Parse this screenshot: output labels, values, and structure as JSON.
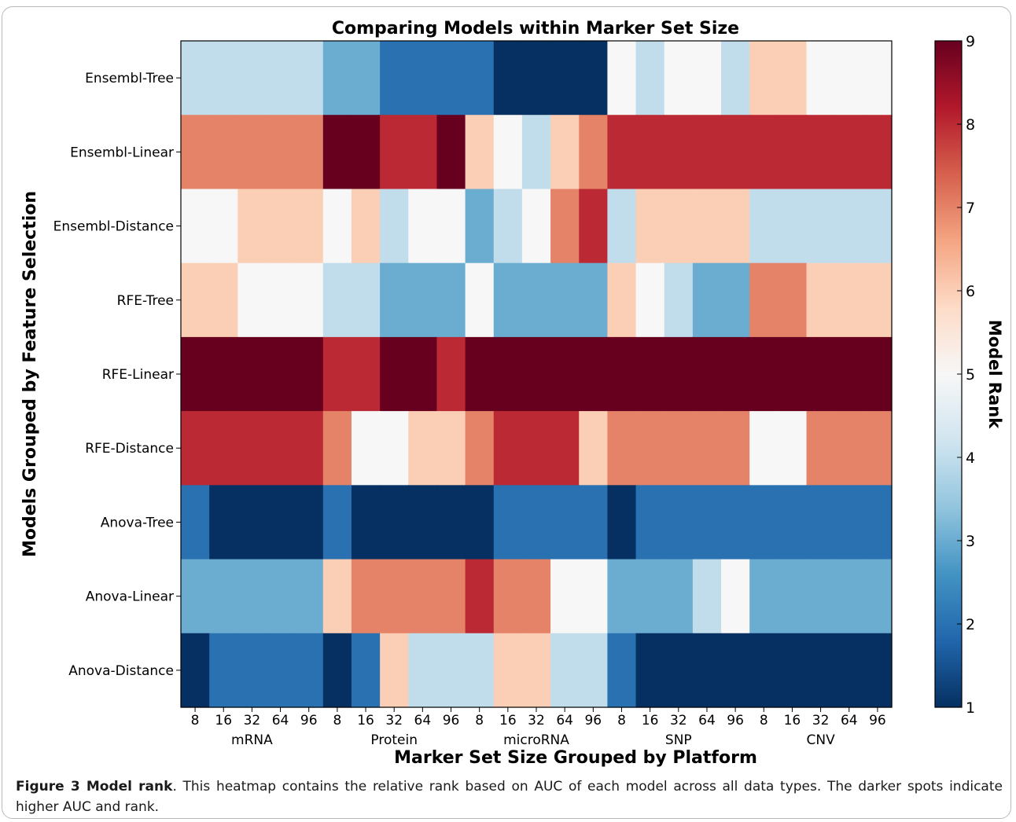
{
  "chart_data": {
    "type": "heatmap",
    "title": "Comparing Models within Marker Set Size",
    "xlabel": "Marker Set Size Grouped by Platform",
    "ylabel": "Models Grouped by Feature Selection",
    "colorbar_label": "Model Rank",
    "colorbar_ticks": [
      "1",
      "2",
      "3",
      "4",
      "5",
      "6",
      "7",
      "8",
      "9"
    ],
    "color_range": [
      1,
      9
    ],
    "colormap": [
      "#053061",
      "#2166ac",
      "#4393c3",
      "#92c5de",
      "#d1e5f0",
      "#f7f7f7",
      "#fddbc7",
      "#f4a582",
      "#d6604d",
      "#b2182b",
      "#67001f"
    ],
    "x_tick_labels": [
      "8",
      "16",
      "32",
      "64",
      "96",
      "8",
      "16",
      "32",
      "64",
      "96",
      "8",
      "16",
      "32",
      "64",
      "96",
      "8",
      "16",
      "32",
      "64",
      "96",
      "8",
      "16",
      "32",
      "64",
      "96"
    ],
    "groups": [
      "mRNA",
      "Protein",
      "microRNA",
      "SNP",
      "CNV"
    ],
    "rows": [
      "Ensembl-Tree",
      "Ensembl-Linear",
      "Ensembl-Distance",
      "RFE-Tree",
      "RFE-Linear",
      "RFE-Distance",
      "Anova-Tree",
      "Anova-Linear",
      "Anova-Distance"
    ],
    "values": [
      [
        4,
        4,
        4,
        4,
        4,
        3,
        3,
        2,
        2,
        2,
        2,
        1,
        1,
        1,
        1,
        5,
        4,
        5,
        5,
        4,
        6,
        6,
        5,
        5,
        5
      ],
      [
        7,
        7,
        7,
        7,
        7,
        9,
        9,
        8,
        8,
        9,
        6,
        5,
        4,
        6,
        7,
        8,
        8,
        8,
        8,
        8,
        8,
        8,
        8,
        8,
        8
      ],
      [
        5,
        5,
        6,
        6,
        6,
        5,
        6,
        4,
        5,
        5,
        3,
        4,
        5,
        7,
        8,
        4,
        6,
        6,
        6,
        6,
        4,
        4,
        4,
        4,
        4
      ],
      [
        6,
        6,
        5,
        5,
        5,
        4,
        4,
        3,
        3,
        3,
        5,
        3,
        3,
        3,
        3,
        6,
        5,
        4,
        3,
        3,
        7,
        7,
        6,
        6,
        6
      ],
      [
        9,
        9,
        9,
        9,
        9,
        8,
        8,
        9,
        9,
        8,
        9,
        9,
        9,
        9,
        9,
        9,
        9,
        9,
        9,
        9,
        9,
        9,
        9,
        9,
        9
      ],
      [
        8,
        8,
        8,
        8,
        8,
        7,
        5,
        5,
        6,
        6,
        7,
        8,
        8,
        8,
        6,
        7,
        7,
        7,
        7,
        7,
        5,
        5,
        7,
        7,
        7
      ],
      [
        2,
        1,
        1,
        1,
        1,
        2,
        1,
        1,
        1,
        1,
        1,
        2,
        2,
        2,
        2,
        1,
        2,
        2,
        2,
        2,
        2,
        2,
        2,
        2,
        2
      ],
      [
        3,
        3,
        3,
        3,
        3,
        6,
        7,
        7,
        7,
        7,
        8,
        7,
        7,
        5,
        5,
        3,
        3,
        3,
        4,
        5,
        3,
        3,
        3,
        3,
        3
      ],
      [
        1,
        2,
        2,
        2,
        2,
        1,
        2,
        6,
        4,
        4,
        4,
        6,
        6,
        4,
        4,
        2,
        1,
        1,
        1,
        1,
        1,
        1,
        1,
        1,
        1
      ]
    ]
  },
  "caption": {
    "label": "Figure 3 Model rank",
    "text": ". This heatmap contains the relative rank based on AUC of each model across all data types. The darker spots indicate higher AUC and rank."
  }
}
